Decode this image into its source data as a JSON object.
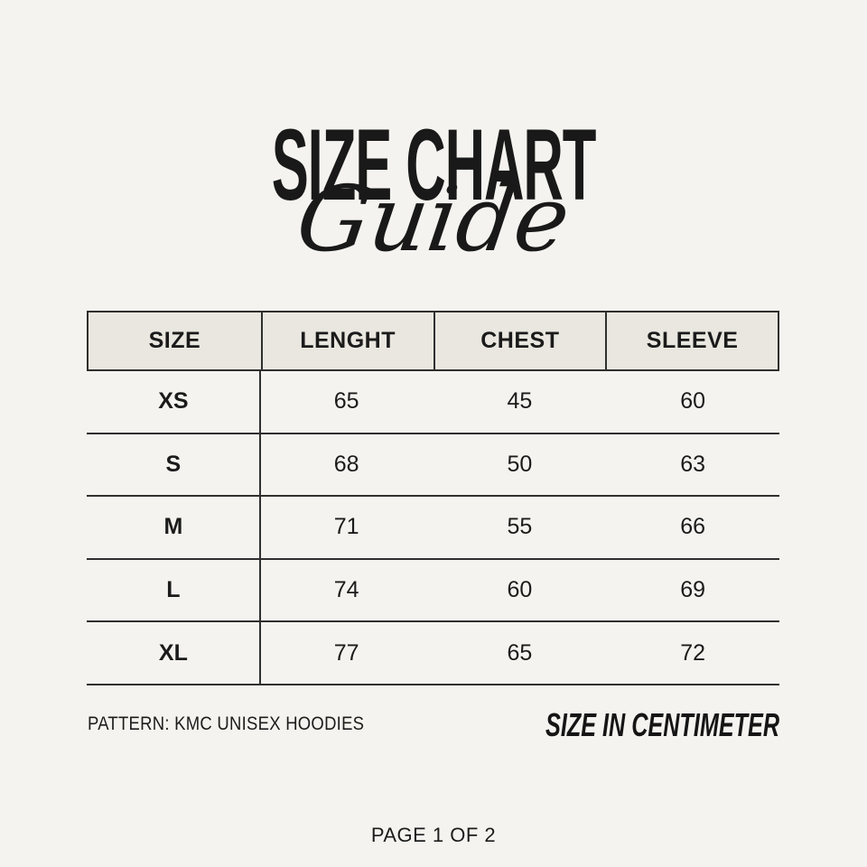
{
  "page": {
    "background_color": "#f4f3ef",
    "title": "SIZE CHART",
    "subtitle_script": "Guide",
    "footer_left": "PATTERN: KMC UNISEX HOODIES",
    "footer_right": "SIZE IN CENTIMETER",
    "page_indicator": "PAGE 1 OF 2"
  },
  "table": {
    "header_background": "#e9e7df",
    "border_color": "#2f2f2f",
    "columns": [
      "SIZE",
      "LENGHT",
      "CHEST",
      "SLEEVE"
    ],
    "rows": [
      [
        "XS",
        "65",
        "45",
        "60"
      ],
      [
        "S",
        "68",
        "50",
        "63"
      ],
      [
        "M",
        "71",
        "55",
        "66"
      ],
      [
        "L",
        "74",
        "60",
        "69"
      ],
      [
        "XL",
        "77",
        "65",
        "72"
      ]
    ]
  },
  "chart_data": {
    "type": "table",
    "title": "SIZE CHART Guide",
    "columns": [
      "SIZE",
      "LENGHT",
      "CHEST",
      "SLEEVE"
    ],
    "rows": [
      [
        "XS",
        "65",
        "45",
        "60"
      ],
      [
        "S",
        "68",
        "50",
        "63"
      ],
      [
        "M",
        "71",
        "55",
        "66"
      ],
      [
        "L",
        "74",
        "60",
        "69"
      ],
      [
        "XL",
        "77",
        "65",
        "72"
      ]
    ],
    "units": "centimeter",
    "notes": [
      "PATTERN: KMC UNISEX HOODIES",
      "SIZE IN CENTIMETER",
      "PAGE 1 OF 2"
    ]
  }
}
